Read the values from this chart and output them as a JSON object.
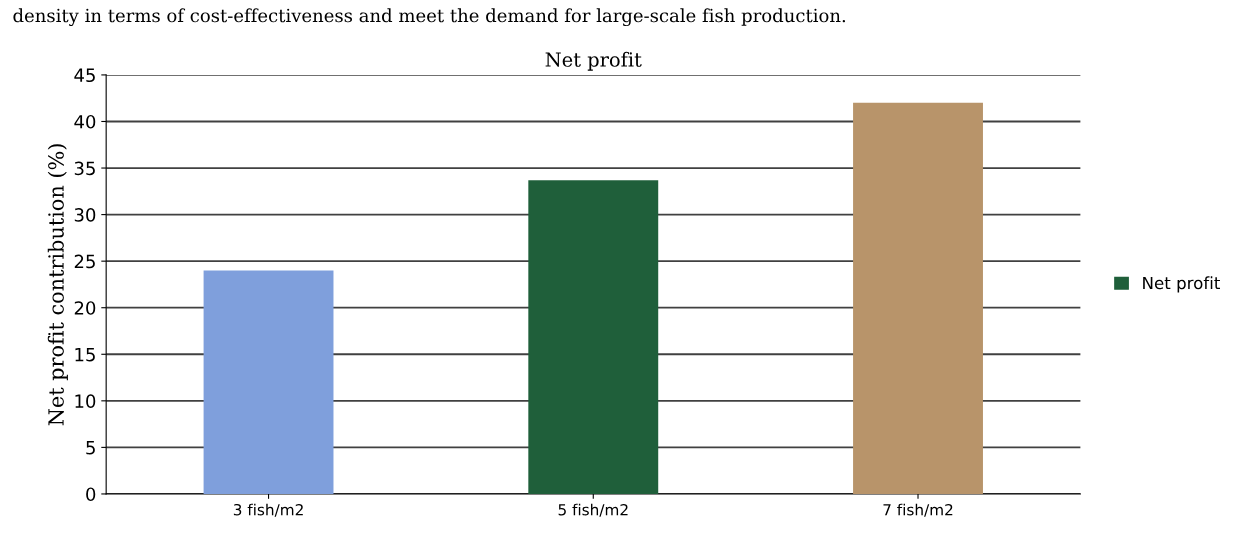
{
  "chart_data": {
    "type": "bar",
    "title": "Net profit",
    "ylabel": "Net profit contribution (%)",
    "annotations": [
      "density in terms of cost-effectiveness and meet the demand for large-scale fish production."
    ],
    "categories": [
      "3 fish/m2",
      "5 fish/m2",
      "7 fish/m2"
    ],
    "series": [
      {
        "name": "Net profit",
        "color": "#1f5f3a",
        "colors": [
          "#7f9fdc",
          "#1f5f3a",
          "#b8946a"
        ],
        "values": [
          24.0,
          33.7,
          42.0
        ]
      }
    ],
    "ylim": [
      0,
      45
    ],
    "yticks": [
      0,
      5,
      10,
      15,
      20,
      25,
      30,
      35,
      40,
      45
    ],
    "grid": "y",
    "legend": "right"
  }
}
